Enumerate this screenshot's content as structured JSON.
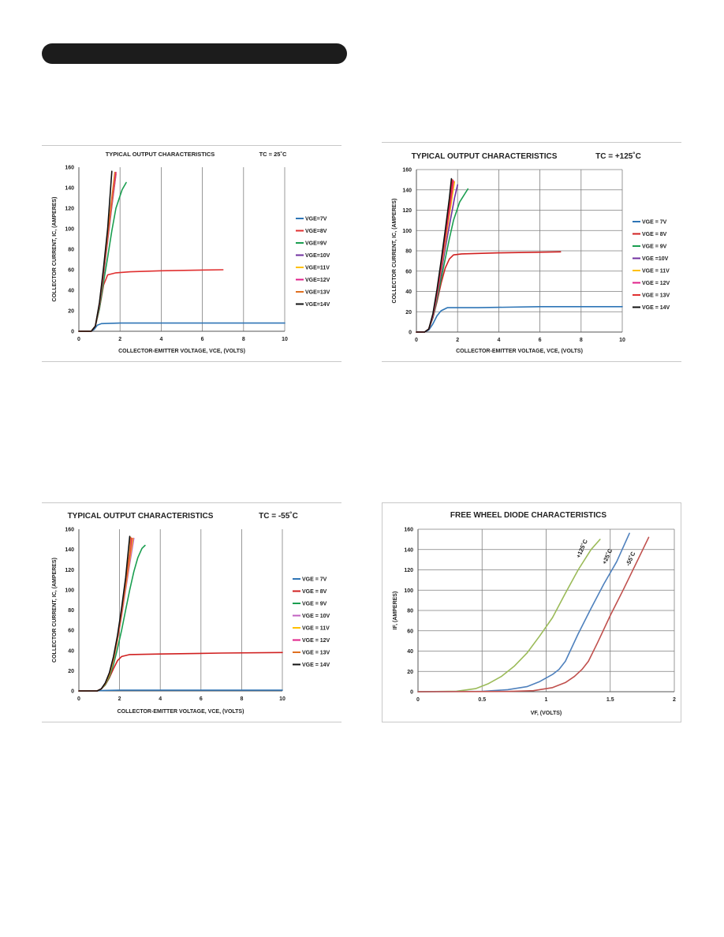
{
  "chart_data": [
    {
      "type": "line",
      "title": "TYPICAL OUTPUT CHARACTERISTICS",
      "condition": "TC = 25˚C",
      "xlabel": "COLLECTOR-EMITTER VOLTAGE, VCE, (VOLTS)",
      "ylabel": "COLLECTOR CURRENT, IC, (AMPERES)",
      "xlim": [
        0,
        10
      ],
      "ylim": [
        0,
        160
      ],
      "xticks": [
        0,
        2,
        4,
        6,
        8,
        10
      ],
      "yticks": [
        0,
        20,
        40,
        60,
        80,
        100,
        120,
        140,
        160
      ],
      "grid": "vertical",
      "legend_position": "right",
      "series": [
        {
          "name": "VGE=7V",
          "color": "#2e75b6",
          "x": [
            0,
            0.6,
            0.75,
            0.9,
            1.1,
            2,
            6,
            10
          ],
          "y": [
            0,
            0,
            2,
            6,
            7.5,
            8,
            8,
            8
          ]
        },
        {
          "name": "VGE=8V",
          "color": "#e03030",
          "x": [
            0,
            0.6,
            0.8,
            1.0,
            1.2,
            1.4,
            1.8,
            2.5,
            4,
            7
          ],
          "y": [
            0,
            0,
            5,
            22,
            45,
            55,
            57,
            58,
            59,
            60
          ]
        },
        {
          "name": "VGE=9V",
          "color": "#1a9e50",
          "x": [
            0,
            0.6,
            0.8,
            1.0,
            1.2,
            1.4,
            1.6,
            1.8,
            2.1,
            2.3
          ],
          "y": [
            0,
            0,
            5,
            22,
            48,
            72,
            98,
            120,
            138,
            145
          ]
        },
        {
          "name": "VGE=10V",
          "color": "#7030a0",
          "x": [
            0,
            0.6,
            0.8,
            1.0,
            1.2,
            1.4,
            1.6,
            1.8
          ],
          "y": [
            0,
            0,
            5,
            25,
            55,
            88,
            122,
            153
          ]
        },
        {
          "name": "VGE=11V",
          "color": "#ffc000",
          "x": [
            0,
            0.6,
            0.8,
            1.0,
            1.2,
            1.4,
            1.6,
            1.8
          ],
          "y": [
            0,
            0,
            5,
            26,
            57,
            90,
            124,
            154
          ]
        },
        {
          "name": "VGE=12V",
          "color": "#e0208a",
          "x": [
            0,
            0.6,
            0.8,
            1.0,
            1.2,
            1.4,
            1.6,
            1.8
          ],
          "y": [
            0,
            0,
            5,
            26,
            58,
            92,
            126,
            155
          ]
        },
        {
          "name": "VGE=13V",
          "color": "#e07020",
          "x": [
            0,
            0.6,
            0.8,
            1.0,
            1.2,
            1.4,
            1.6,
            1.75
          ],
          "y": [
            0,
            0,
            5,
            27,
            60,
            95,
            130,
            155
          ]
        },
        {
          "name": "VGE=14V",
          "color": "#111111",
          "x": [
            0,
            0.6,
            0.8,
            1.0,
            1.2,
            1.4,
            1.6
          ],
          "y": [
            0,
            0,
            5,
            28,
            62,
            100,
            156
          ]
        }
      ]
    },
    {
      "type": "line",
      "title": "TYPICAL OUTPUT CHARACTERISTICS",
      "condition": "TC = +125˚C",
      "xlabel": "COLLECTOR-EMITTER VOLTAGE, VCE, (VOLTS)",
      "ylabel": "COLLECTOR CURRENT, IC, (AMPERES)",
      "xlim": [
        0,
        10
      ],
      "ylim": [
        0,
        160
      ],
      "xticks": [
        0,
        2,
        4,
        6,
        8,
        10
      ],
      "yticks": [
        0,
        20,
        40,
        60,
        80,
        100,
        120,
        140,
        160
      ],
      "grid": "both",
      "legend_position": "right",
      "series": [
        {
          "name": "VGE = 7V",
          "color": "#2e75b6",
          "x": [
            0,
            0.4,
            0.6,
            0.8,
            1.0,
            1.2,
            1.5,
            3,
            6,
            10
          ],
          "y": [
            0,
            0,
            2,
            8,
            16,
            21,
            24,
            24,
            25,
            25
          ]
        },
        {
          "name": "VGE = 8V",
          "color": "#d02020",
          "x": [
            0,
            0.4,
            0.6,
            0.8,
            1.0,
            1.2,
            1.4,
            1.6,
            1.8,
            2.2,
            4,
            7
          ],
          "y": [
            0,
            0,
            3,
            14,
            30,
            48,
            63,
            72,
            76,
            77,
            78,
            79
          ]
        },
        {
          "name": "VGE = 9V",
          "color": "#1a9e50",
          "x": [
            0,
            0.4,
            0.6,
            0.8,
            1.0,
            1.2,
            1.4,
            1.6,
            1.8,
            2.1,
            2.5
          ],
          "y": [
            0,
            0,
            3,
            14,
            32,
            52,
            72,
            92,
            110,
            128,
            141
          ]
        },
        {
          "name": "VGE =10V",
          "color": "#7030a0",
          "x": [
            0,
            0.4,
            0.6,
            0.8,
            1.0,
            1.2,
            1.4,
            1.6,
            1.85,
            2.0
          ],
          "y": [
            0,
            0,
            3,
            15,
            35,
            58,
            82,
            105,
            132,
            145
          ]
        },
        {
          "name": "VGE = 11V",
          "color": "#ffc000",
          "x": [
            0,
            0.4,
            0.6,
            0.8,
            1.0,
            1.2,
            1.4,
            1.6,
            1.85
          ],
          "y": [
            0,
            0,
            3,
            16,
            37,
            62,
            88,
            115,
            148
          ]
        },
        {
          "name": "VGE = 12V",
          "color": "#e0208a",
          "x": [
            0,
            0.4,
            0.6,
            0.8,
            1.0,
            1.2,
            1.4,
            1.6,
            1.8
          ],
          "y": [
            0,
            0,
            3,
            16,
            38,
            64,
            92,
            120,
            149
          ]
        },
        {
          "name": "VGE = 13V",
          "color": "#e03030",
          "x": [
            0,
            0.4,
            0.6,
            0.8,
            1.0,
            1.2,
            1.4,
            1.6,
            1.75
          ],
          "y": [
            0,
            0,
            3,
            17,
            40,
            67,
            96,
            125,
            150
          ]
        },
        {
          "name": "VGE = 14V",
          "color": "#111111",
          "x": [
            0,
            0.4,
            0.6,
            0.8,
            1.0,
            1.2,
            1.4,
            1.6,
            1.7
          ],
          "y": [
            0,
            0,
            3,
            18,
            42,
            70,
            100,
            132,
            151
          ]
        }
      ]
    },
    {
      "type": "line",
      "title": "TYPICAL OUTPUT CHARACTERISTICS",
      "condition": "TC = -55˚C",
      "xlabel": "COLLECTOR-EMITTER VOLTAGE, VCE, (VOLTS)",
      "ylabel": "COLLECTOR CURRENT, IC, (AMPERES)",
      "xlim": [
        0,
        10
      ],
      "ylim": [
        0,
        160
      ],
      "xticks": [
        0,
        2,
        4,
        6,
        8,
        10
      ],
      "yticks": [
        0,
        20,
        40,
        60,
        80,
        100,
        120,
        140,
        160
      ],
      "grid": "vertical",
      "legend_position": "right",
      "series": [
        {
          "name": "VGE = 7V",
          "color": "#2e75b6",
          "x": [
            0,
            0.9,
            1.2,
            2,
            5,
            10
          ],
          "y": [
            0,
            0,
            0.5,
            0.8,
            0.8,
            0.8
          ]
        },
        {
          "name": "VGE = 8V",
          "color": "#d02020",
          "x": [
            0,
            0.9,
            1.1,
            1.3,
            1.5,
            1.7,
            1.9,
            2.1,
            2.5,
            4,
            7,
            10
          ],
          "y": [
            0,
            0,
            2,
            6,
            13,
            22,
            30,
            34,
            36,
            36.5,
            37.5,
            38
          ]
        },
        {
          "name": "VGE = 9V",
          "color": "#1a9e50",
          "x": [
            0,
            0.9,
            1.1,
            1.3,
            1.5,
            1.7,
            1.9,
            2.1,
            2.3,
            2.5,
            2.7,
            2.9,
            3.1,
            3.25
          ],
          "y": [
            0,
            0,
            2,
            6,
            14,
            26,
            42,
            60,
            80,
            100,
            118,
            132,
            141,
            144
          ]
        },
        {
          "name": "VGE = 10V",
          "color": "#c060c0",
          "x": [
            0,
            0.9,
            1.1,
            1.3,
            1.5,
            1.7,
            1.9,
            2.1,
            2.3,
            2.5,
            2.7
          ],
          "y": [
            0,
            0,
            2,
            7,
            16,
            30,
            50,
            74,
            100,
            126,
            151
          ]
        },
        {
          "name": "VGE = 11V",
          "color": "#ffc000",
          "x": [
            0,
            0.9,
            1.1,
            1.3,
            1.5,
            1.7,
            1.9,
            2.1,
            2.3,
            2.5,
            2.65
          ],
          "y": [
            0,
            0,
            2,
            7,
            16,
            31,
            51,
            76,
            103,
            130,
            151
          ]
        },
        {
          "name": "VGE = 12V",
          "color": "#e0208a",
          "x": [
            0,
            0.9,
            1.1,
            1.3,
            1.5,
            1.7,
            1.9,
            2.1,
            2.3,
            2.5,
            2.6
          ],
          "y": [
            0,
            0,
            2,
            7,
            17,
            32,
            52,
            78,
            106,
            134,
            151
          ]
        },
        {
          "name": "VGE = 13V",
          "color": "#e07020",
          "x": [
            0,
            0.9,
            1.1,
            1.3,
            1.5,
            1.7,
            1.9,
            2.1,
            2.3,
            2.5,
            2.55
          ],
          "y": [
            0,
            0,
            2,
            7,
            17,
            32,
            53,
            80,
            108,
            138,
            152
          ]
        },
        {
          "name": "VGE = 14V",
          "color": "#111111",
          "x": [
            0,
            0.9,
            1.1,
            1.3,
            1.5,
            1.7,
            1.9,
            2.1,
            2.3,
            2.5
          ],
          "y": [
            0,
            0,
            2,
            8,
            18,
            34,
            55,
            82,
            112,
            153
          ]
        }
      ]
    },
    {
      "type": "line",
      "title": "FREE WHEEL DIODE CHARACTERISTICS",
      "condition": "",
      "xlabel": "VF, (VOLTS)",
      "ylabel": "IF, (AMPERES)",
      "xlim": [
        0,
        2
      ],
      "ylim": [
        0,
        160
      ],
      "xticks": [
        "0",
        "0.5",
        "1",
        "1.5",
        "2"
      ],
      "yticks": [
        0,
        20,
        40,
        60,
        80,
        100,
        120,
        140,
        160
      ],
      "grid": "both",
      "legend_position": "inline",
      "series": [
        {
          "name": "+125˚C",
          "color": "#9bbb59",
          "x": [
            0,
            0.3,
            0.45,
            0.55,
            0.65,
            0.75,
            0.85,
            0.95,
            1.05,
            1.15,
            1.25,
            1.35,
            1.42
          ],
          "y": [
            0,
            0.5,
            3,
            8,
            15,
            25,
            38,
            55,
            73,
            97,
            120,
            140,
            150
          ]
        },
        {
          "name": "+25˚C",
          "color": "#4f81bd",
          "x": [
            0,
            0.5,
            0.7,
            0.85,
            0.95,
            1.05,
            1.1,
            1.15,
            1.25,
            1.35,
            1.45,
            1.55,
            1.65
          ],
          "y": [
            0,
            0.3,
            2,
            5,
            10,
            17,
            22,
            30,
            57,
            82,
            106,
            128,
            156
          ]
        },
        {
          "name": "-55˚C",
          "color": "#c0504d",
          "x": [
            0,
            0.7,
            0.9,
            1.05,
            1.15,
            1.22,
            1.28,
            1.33,
            1.4,
            1.5,
            1.6,
            1.7,
            1.8
          ],
          "y": [
            0,
            0.2,
            1,
            4,
            9,
            15,
            22,
            30,
            48,
            75,
            100,
            126,
            152
          ]
        }
      ]
    }
  ]
}
